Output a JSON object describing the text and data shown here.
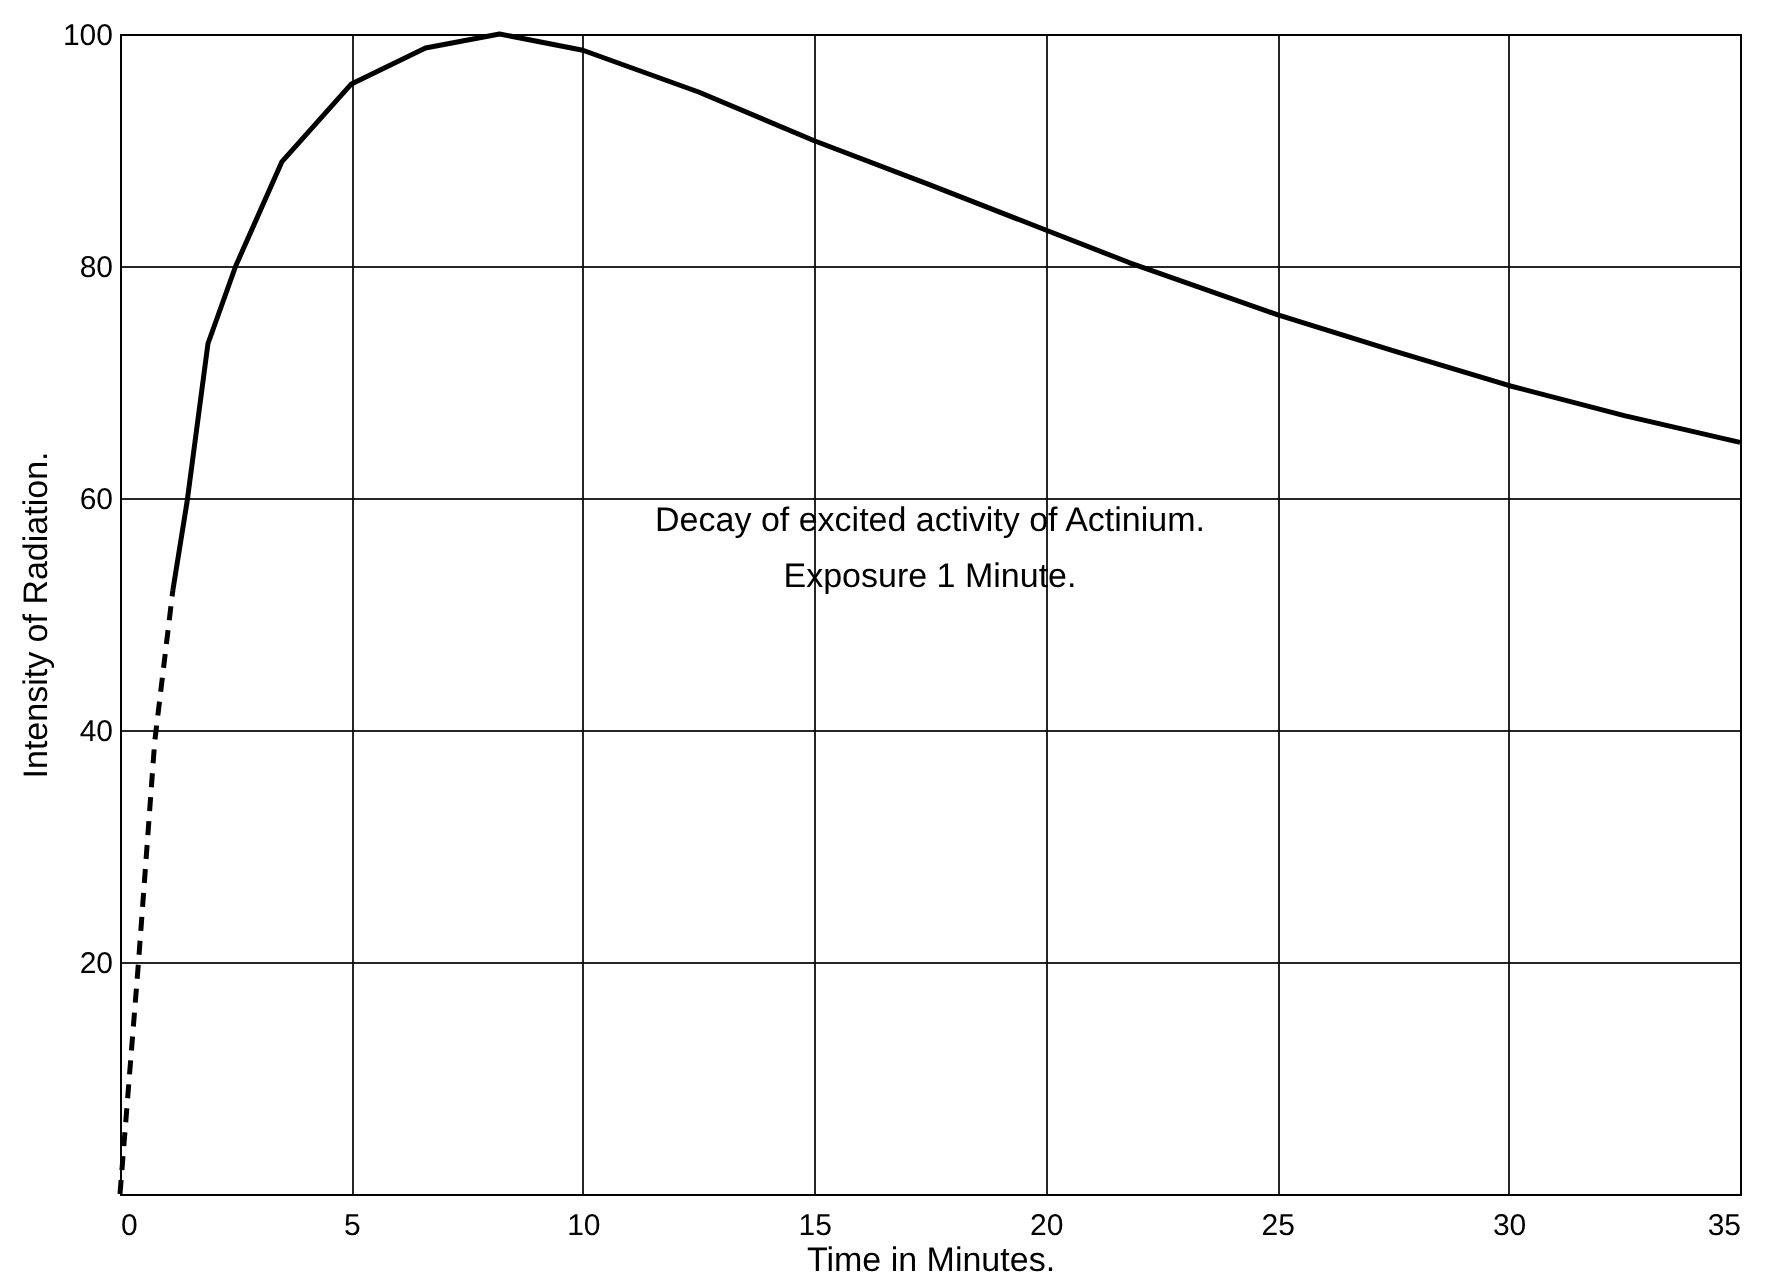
{
  "chart_data": {
    "type": "line",
    "xlabel": "Time in Minutes.",
    "ylabel": "Intensity of Radiation.",
    "annotations": [
      "Decay of excited activity of Actinium.",
      "Exposure 1 Minute."
    ],
    "xlim": [
      0,
      35
    ],
    "ylim": [
      0,
      100
    ],
    "xticks": [
      0,
      5,
      10,
      15,
      20,
      25,
      30,
      35
    ],
    "yticks": [
      {
        "value": 0,
        "label": null
      },
      20,
      40,
      60,
      80,
      100
    ],
    "grid": true,
    "marker": "none",
    "series": [
      {
        "color": "#000000",
        "line_style": "dashed",
        "x": [
          0,
          0.4,
          0.75,
          1.14
        ],
        "values": [
          0,
          20,
          39,
          52
        ]
      },
      {
        "color": "#000000",
        "line_style": "solid",
        "x": [
          1.14,
          1.45,
          1.9,
          2.5,
          3.5,
          5,
          6.6,
          8.2,
          10,
          12.5,
          15,
          17.5,
          20,
          21.8,
          25,
          27.5,
          30,
          32.5,
          35
        ],
        "values": [
          52,
          59.7,
          73.3,
          80,
          89,
          95.7,
          98.8,
          100,
          98.6,
          95,
          90.8,
          87,
          83.1,
          80.3,
          75.8,
          72.7,
          69.7,
          67.1,
          64.8
        ]
      }
    ]
  }
}
